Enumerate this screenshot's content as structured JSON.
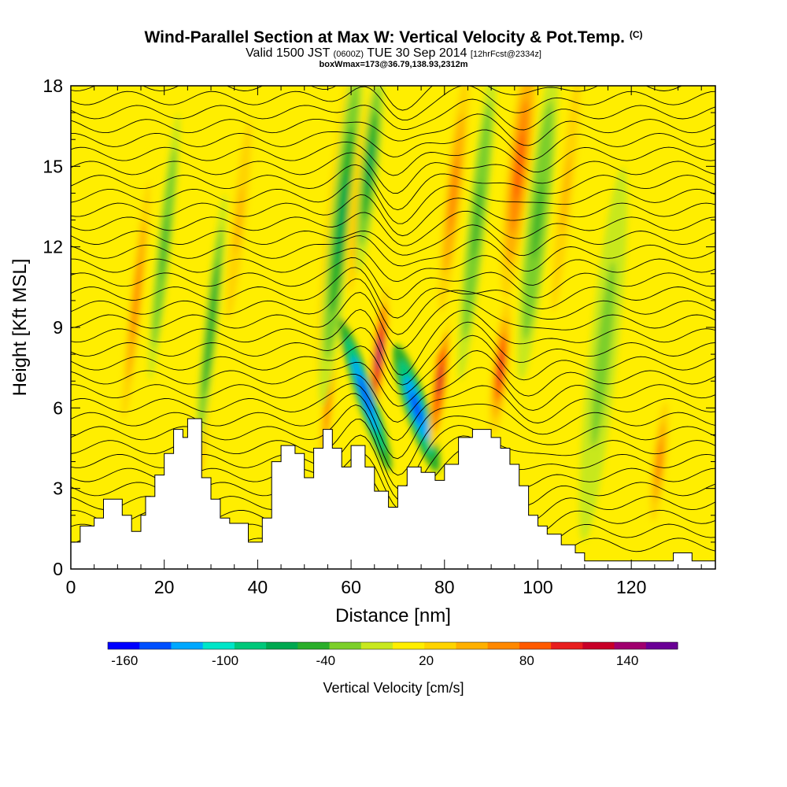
{
  "header": {
    "title": "Wind-Parallel Section at Max W: Vertical Velocity & Pot.Temp.",
    "title_units": "(C)",
    "valid_time": "Valid 1500 JST",
    "utc_time": "(0600Z)",
    "date": "TUE 30 Sep 2014",
    "forecast": "[12hrFcst@2334z]",
    "box_info": "boxWmax=173@36.79,138.93,2312m"
  },
  "chart_data": {
    "type": "heatmap",
    "xlabel": "Distance [nm]",
    "ylabel": "Height [Kft MSL]",
    "xlim": [
      0,
      138
    ],
    "ylim": [
      0,
      18
    ],
    "x_ticks": [
      "0",
      "20",
      "40",
      "60",
      "80",
      "100",
      "120"
    ],
    "y_ticks": [
      "0",
      "3",
      "6",
      "9",
      "12",
      "15",
      "18"
    ],
    "grid": false,
    "colorbar": {
      "title": "Vertical Velocity [cm/s]",
      "placement": "bottom",
      "range": [
        -170,
        170
      ],
      "labels": [
        "-160",
        "-100",
        "-40",
        "20",
        "80",
        "140"
      ],
      "colors": [
        "#0000ff",
        "#0050ff",
        "#00a8ff",
        "#00e6c8",
        "#00c87a",
        "#00a850",
        "#2aae2a",
        "#7ccf2a",
        "#c8e81e",
        "#ffee00",
        "#ffd400",
        "#ffb000",
        "#ff8800",
        "#ff5a00",
        "#e81e1e",
        "#c80028",
        "#a0006e",
        "#6a0096"
      ]
    },
    "background_value": 0,
    "terrain": [
      [
        0,
        1.0
      ],
      [
        2,
        1.0
      ],
      [
        2,
        1.6
      ],
      [
        5,
        1.6
      ],
      [
        5,
        1.9
      ],
      [
        7,
        1.9
      ],
      [
        7,
        2.6
      ],
      [
        11,
        2.6
      ],
      [
        11,
        2.0
      ],
      [
        13,
        2.0
      ],
      [
        13,
        1.4
      ],
      [
        15,
        1.4
      ],
      [
        15,
        2.0
      ],
      [
        16,
        2.0
      ],
      [
        16,
        2.7
      ],
      [
        18,
        2.7
      ],
      [
        18,
        3.5
      ],
      [
        20,
        3.5
      ],
      [
        20,
        4.3
      ],
      [
        22,
        4.3
      ],
      [
        22,
        5.2
      ],
      [
        24,
        5.2
      ],
      [
        24,
        4.9
      ],
      [
        25,
        4.9
      ],
      [
        25,
        5.6
      ],
      [
        28,
        5.6
      ],
      [
        28,
        3.4
      ],
      [
        30,
        3.4
      ],
      [
        30,
        2.6
      ],
      [
        32,
        2.6
      ],
      [
        32,
        1.9
      ],
      [
        34,
        1.9
      ],
      [
        34,
        1.7
      ],
      [
        38,
        1.7
      ],
      [
        38,
        1.0
      ],
      [
        41,
        1.0
      ],
      [
        41,
        1.9
      ],
      [
        43,
        1.9
      ],
      [
        43,
        4.0
      ],
      [
        45,
        4.0
      ],
      [
        45,
        4.6
      ],
      [
        48,
        4.6
      ],
      [
        48,
        4.3
      ],
      [
        50,
        4.3
      ],
      [
        50,
        3.4
      ],
      [
        52,
        3.4
      ],
      [
        52,
        4.5
      ],
      [
        54,
        4.5
      ],
      [
        54,
        5.2
      ],
      [
        56,
        5.2
      ],
      [
        56,
        4.5
      ],
      [
        58,
        4.5
      ],
      [
        58,
        3.8
      ],
      [
        60,
        3.8
      ],
      [
        60,
        4.6
      ],
      [
        63,
        4.6
      ],
      [
        63,
        3.8
      ],
      [
        65,
        3.8
      ],
      [
        65,
        2.9
      ],
      [
        68,
        2.9
      ],
      [
        68,
        2.3
      ],
      [
        70,
        2.3
      ],
      [
        70,
        3.1
      ],
      [
        72,
        3.1
      ],
      [
        72,
        3.8
      ],
      [
        75,
        3.8
      ],
      [
        75,
        3.6
      ],
      [
        78,
        3.6
      ],
      [
        78,
        3.3
      ],
      [
        80,
        3.3
      ],
      [
        80,
        3.9
      ],
      [
        83,
        3.9
      ],
      [
        83,
        4.9
      ],
      [
        86,
        4.9
      ],
      [
        86,
        5.2
      ],
      [
        90,
        5.2
      ],
      [
        90,
        4.9
      ],
      [
        92,
        4.9
      ],
      [
        92,
        4.5
      ],
      [
        94,
        4.5
      ],
      [
        94,
        3.9
      ],
      [
        96,
        3.9
      ],
      [
        96,
        3.1
      ],
      [
        98,
        3.1
      ],
      [
        98,
        2.0
      ],
      [
        100,
        2.0
      ],
      [
        100,
        1.6
      ],
      [
        102,
        1.6
      ],
      [
        102,
        1.3
      ],
      [
        105,
        1.3
      ],
      [
        105,
        0.9
      ],
      [
        108,
        0.9
      ],
      [
        108,
        0.6
      ],
      [
        110,
        0.6
      ],
      [
        110,
        0.3
      ],
      [
        120,
        0.3
      ],
      [
        120,
        0.3
      ],
      [
        129,
        0.3
      ],
      [
        129,
        0.6
      ],
      [
        133,
        0.6
      ],
      [
        133,
        0.3
      ],
      [
        138,
        0.3
      ]
    ],
    "plumes": [
      {
        "x": 14,
        "y_center": 10,
        "width": 1.8,
        "height": 12,
        "value": 60
      },
      {
        "x": 20,
        "y_center": 12,
        "width": 1.5,
        "height": 10,
        "value": -45
      },
      {
        "x": 28,
        "y_center": 5,
        "width": 1.5,
        "height": 6,
        "value": 75
      },
      {
        "x": 30,
        "y_center": 9,
        "width": 1.5,
        "height": 10,
        "value": -55
      },
      {
        "x": 36,
        "y_center": 13,
        "width": 2.0,
        "height": 10,
        "value": 45
      },
      {
        "x": 55,
        "y_center": 6,
        "width": 1.5,
        "height": 6,
        "value": 70
      },
      {
        "x": 57,
        "y_center": 13,
        "width": 2.2,
        "height": 12,
        "value": 110
      },
      {
        "x": 58,
        "y_center": 13,
        "width": 2.5,
        "height": 14,
        "value": -70
      },
      {
        "x": 62,
        "y_center": 14,
        "width": 2.0,
        "height": 10,
        "value": 65
      },
      {
        "x": 64,
        "y_center": 15,
        "width": 2.0,
        "height": 8,
        "value": -60
      },
      {
        "x": 66,
        "y_center": 8,
        "width": 1.6,
        "height": 5,
        "value": 150
      },
      {
        "x": 63,
        "y_center": 6.5,
        "width": 2.0,
        "height": 6,
        "value": -160
      },
      {
        "x": 74,
        "y_center": 6.0,
        "width": 2.5,
        "height": 5,
        "value": -165
      },
      {
        "x": 79,
        "y_center": 7.0,
        "width": 1.6,
        "height": 5,
        "value": 120
      },
      {
        "x": 82,
        "y_center": 14,
        "width": 2.5,
        "height": 12,
        "value": 60
      },
      {
        "x": 87,
        "y_center": 13,
        "width": 2.0,
        "height": 12,
        "value": -45
      },
      {
        "x": 92,
        "y_center": 7.5,
        "width": 1.8,
        "height": 5,
        "value": 110
      },
      {
        "x": 96,
        "y_center": 15,
        "width": 2.5,
        "height": 10,
        "value": 90
      },
      {
        "x": 100,
        "y_center": 13,
        "width": 2.5,
        "height": 12,
        "value": -40
      },
      {
        "x": 106,
        "y_center": 14,
        "width": 2.0,
        "height": 12,
        "value": 40
      },
      {
        "x": 114,
        "y_center": 8,
        "width": 3.0,
        "height": 14,
        "value": -30
      },
      {
        "x": 126,
        "y_center": 4,
        "width": 2.0,
        "height": 6,
        "value": 65
      }
    ]
  }
}
